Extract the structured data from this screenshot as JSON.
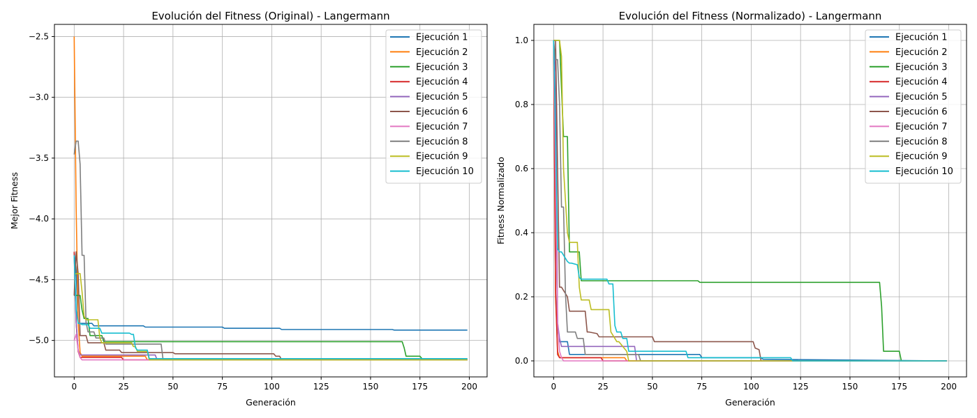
{
  "chart_data": [
    {
      "type": "line",
      "title": "Evolución del Fitness (Original) - Langermann",
      "xlabel": "Generación",
      "ylabel": "Mejor Fitness",
      "xlim": [
        -10,
        209
      ],
      "ylim": [
        -5.3,
        -2.4
      ],
      "xticks": [
        0,
        25,
        50,
        75,
        100,
        125,
        150,
        175,
        200
      ],
      "yticks": [
        -2.5,
        -3.0,
        -3.5,
        -4.0,
        -4.5,
        -5.0
      ],
      "ytick_labels": [
        "−2.5",
        "−3.0",
        "−3.5",
        "−4.0",
        "−4.5",
        "−5.0"
      ],
      "grid": true,
      "legend": "top-right",
      "series": [
        {
          "name": "Ejecución 1",
          "color": "#1f77b4",
          "x": [
            0,
            1,
            2,
            5,
            9,
            10,
            35,
            36,
            75,
            76,
            104,
            105,
            161,
            162,
            199
          ],
          "y": [
            -4.28,
            -4.42,
            -4.86,
            -4.86,
            -4.86,
            -4.88,
            -4.88,
            -4.89,
            -4.89,
            -4.9,
            -4.9,
            -4.91,
            -4.91,
            -4.915,
            -4.915
          ]
        },
        {
          "name": "Ejecución 2",
          "color": "#ff7f0e",
          "x": [
            0,
            1,
            2,
            3,
            4,
            36,
            37,
            199
          ],
          "y": [
            -2.5,
            -3.9,
            -4.85,
            -5.1,
            -5.13,
            -5.13,
            -5.16,
            -5.16
          ]
        },
        {
          "name": "Ejecución 3",
          "color": "#2ca02c",
          "x": [
            0,
            3,
            4,
            5,
            7,
            8,
            14,
            15,
            166,
            167,
            168,
            175,
            176,
            199
          ],
          "y": [
            -4.63,
            -4.63,
            -4.75,
            -4.82,
            -4.82,
            -4.96,
            -4.96,
            -5.01,
            -5.01,
            -5.06,
            -5.13,
            -5.13,
            -5.15,
            -5.15
          ]
        },
        {
          "name": "Ejecución 4",
          "color": "#d62728",
          "x": [
            0,
            1,
            2,
            3,
            24,
            25,
            199
          ],
          "y": [
            -4.27,
            -4.85,
            -5.09,
            -5.14,
            -5.14,
            -5.16,
            -5.16
          ]
        },
        {
          "name": "Ejecución 5",
          "color": "#9467bd",
          "x": [
            0,
            1,
            2,
            3,
            41,
            42,
            199
          ],
          "y": [
            -4.3,
            -4.85,
            -5.08,
            -5.12,
            -5.12,
            -5.16,
            -5.16
          ]
        },
        {
          "name": "Ejecución 6",
          "color": "#8c564b",
          "x": [
            0,
            1,
            2,
            3,
            6,
            7,
            15,
            16,
            23,
            24,
            50,
            51,
            101,
            102,
            104,
            105,
            199
          ],
          "y": [
            -4.63,
            -4.27,
            -4.45,
            -4.96,
            -4.96,
            -5.02,
            -5.02,
            -5.08,
            -5.08,
            -5.1,
            -5.1,
            -5.11,
            -5.11,
            -5.13,
            -5.13,
            -5.16,
            -5.16
          ]
        },
        {
          "name": "Ejecución 7",
          "color": "#e377c2",
          "x": [
            0,
            1,
            2,
            3,
            4,
            199
          ],
          "y": [
            -5.0,
            -4.95,
            -5.08,
            -5.14,
            -5.16,
            -5.16
          ]
        },
        {
          "name": "Ejecución 8",
          "color": "#7f7f7f",
          "x": [
            0,
            1,
            2,
            3,
            4,
            5,
            6,
            7,
            10,
            11,
            15,
            16,
            44,
            45,
            199
          ],
          "y": [
            -3.47,
            -3.36,
            -3.36,
            -3.55,
            -4.3,
            -4.3,
            -4.85,
            -4.93,
            -4.93,
            -4.98,
            -4.98,
            -5.03,
            -5.03,
            -5.16,
            -5.16
          ]
        },
        {
          "name": "Ejecución 9",
          "color": "#bcbd22",
          "x": [
            0,
            1,
            2,
            3,
            4,
            5,
            6,
            12,
            13,
            14,
            29,
            30,
            31,
            32,
            37,
            38,
            199
          ],
          "y": [
            -4.46,
            -4.45,
            -4.45,
            -4.45,
            -4.6,
            -4.8,
            -4.83,
            -4.83,
            -4.98,
            -5.02,
            -5.02,
            -5.05,
            -5.05,
            -5.09,
            -5.09,
            -5.16,
            -5.16
          ]
        },
        {
          "name": "Ejecución 10",
          "color": "#17becf",
          "x": [
            0,
            1,
            2,
            3,
            4,
            7,
            8,
            13,
            14,
            28,
            29,
            30,
            31,
            32,
            37,
            38,
            199
          ],
          "y": [
            -4.3,
            -4.75,
            -4.86,
            -4.86,
            -4.87,
            -4.87,
            -4.9,
            -4.9,
            -4.94,
            -4.94,
            -4.95,
            -4.95,
            -5.06,
            -5.08,
            -5.08,
            -5.15,
            -5.15
          ]
        }
      ]
    },
    {
      "type": "line",
      "title": "Evolución del Fitness (Normalizado) - Langermann",
      "xlabel": "Generación",
      "ylabel": "Fitness Normalizado",
      "xlim": [
        -10,
        209
      ],
      "ylim": [
        -0.05,
        1.05
      ],
      "xticks": [
        0,
        25,
        50,
        75,
        100,
        125,
        150,
        175,
        200
      ],
      "yticks": [
        0.0,
        0.2,
        0.4,
        0.6,
        0.8,
        1.0
      ],
      "ytick_labels": [
        "0.0",
        "0.2",
        "0.4",
        "0.6",
        "0.8",
        "1.0"
      ],
      "grid": true,
      "legend": "top-right",
      "series": [
        {
          "name": "Ejecución 1",
          "color": "#1f77b4",
          "x": [
            0,
            1,
            2,
            3,
            7,
            8,
            74,
            75,
            105,
            106,
            199
          ],
          "y": [
            1.0,
            0.55,
            0.1,
            0.06,
            0.06,
            0.02,
            0.02,
            0.01,
            0.01,
            0.005,
            0.0
          ]
        },
        {
          "name": "Ejecución 2",
          "color": "#ff7f0e",
          "x": [
            0,
            1,
            2,
            3,
            4,
            36,
            37,
            199
          ],
          "y": [
            1.0,
            0.2,
            0.03,
            0.01,
            0.01,
            0.01,
            0.0,
            0.0
          ]
        },
        {
          "name": "Ejecución 3",
          "color": "#2ca02c",
          "x": [
            0,
            3,
            4,
            5,
            6,
            7,
            8,
            13,
            14,
            73,
            74,
            165,
            166,
            167,
            175,
            176,
            199
          ],
          "y": [
            1.0,
            1.0,
            0.85,
            0.7,
            0.7,
            0.7,
            0.34,
            0.34,
            0.25,
            0.25,
            0.245,
            0.245,
            0.17,
            0.03,
            0.03,
            0.0,
            0.0
          ]
        },
        {
          "name": "Ejecución 4",
          "color": "#d62728",
          "x": [
            0,
            1,
            2,
            3,
            24,
            25,
            199
          ],
          "y": [
            1.0,
            0.22,
            0.02,
            0.01,
            0.01,
            0.0,
            0.0
          ]
        },
        {
          "name": "Ejecución 5",
          "color": "#9467bd",
          "x": [
            0,
            1,
            2,
            3,
            4,
            41,
            42,
            199
          ],
          "y": [
            1.0,
            0.9,
            0.12,
            0.07,
            0.045,
            0.045,
            0.0,
            0.0
          ]
        },
        {
          "name": "Ejecución 6",
          "color": "#8c564b",
          "x": [
            0,
            1,
            2,
            3,
            4,
            7,
            8,
            16,
            17,
            18,
            22,
            23,
            50,
            51,
            101,
            102,
            104,
            105,
            199
          ],
          "y": [
            1.0,
            1.0,
            0.6,
            0.23,
            0.23,
            0.2,
            0.155,
            0.155,
            0.09,
            0.09,
            0.085,
            0.075,
            0.075,
            0.06,
            0.06,
            0.04,
            0.035,
            0.0,
            0.0
          ]
        },
        {
          "name": "Ejecución 7",
          "color": "#e377c2",
          "x": [
            0,
            1,
            2,
            3,
            4,
            5,
            199
          ],
          "y": [
            1.0,
            0.55,
            0.12,
            0.03,
            0.01,
            0.0,
            0.0
          ]
        },
        {
          "name": "Ejecución 8",
          "color": "#7f7f7f",
          "x": [
            0,
            1,
            2,
            3,
            4,
            5,
            6,
            7,
            11,
            12,
            15,
            16,
            43,
            44,
            199
          ],
          "y": [
            1.0,
            0.94,
            0.94,
            0.8,
            0.48,
            0.48,
            0.21,
            0.09,
            0.09,
            0.07,
            0.07,
            0.02,
            0.02,
            0.0,
            0.0
          ]
        },
        {
          "name": "Ejecución 9",
          "color": "#bcbd22",
          "x": [
            0,
            1,
            2,
            3,
            4,
            5,
            6,
            7,
            8,
            12,
            13,
            14,
            18,
            19,
            28,
            29,
            32,
            33,
            37,
            38,
            199
          ],
          "y": [
            1.0,
            1.0,
            1.0,
            1.0,
            0.95,
            0.6,
            0.5,
            0.4,
            0.37,
            0.37,
            0.23,
            0.19,
            0.19,
            0.16,
            0.16,
            0.09,
            0.06,
            0.06,
            0.03,
            0.0,
            0.0
          ]
        },
        {
          "name": "Ejecución 10",
          "color": "#17becf",
          "x": [
            0,
            1,
            2,
            3,
            4,
            6,
            7,
            8,
            9,
            12,
            13,
            14,
            27,
            28,
            30,
            31,
            32,
            34,
            35,
            36,
            37,
            38,
            67,
            68,
            120,
            121,
            199
          ],
          "y": [
            1.0,
            0.7,
            0.35,
            0.34,
            0.34,
            0.32,
            0.31,
            0.305,
            0.305,
            0.3,
            0.26,
            0.255,
            0.255,
            0.24,
            0.24,
            0.11,
            0.09,
            0.09,
            0.07,
            0.07,
            0.07,
            0.03,
            0.03,
            0.01,
            0.01,
            0.0,
            0.0
          ]
        }
      ]
    }
  ]
}
